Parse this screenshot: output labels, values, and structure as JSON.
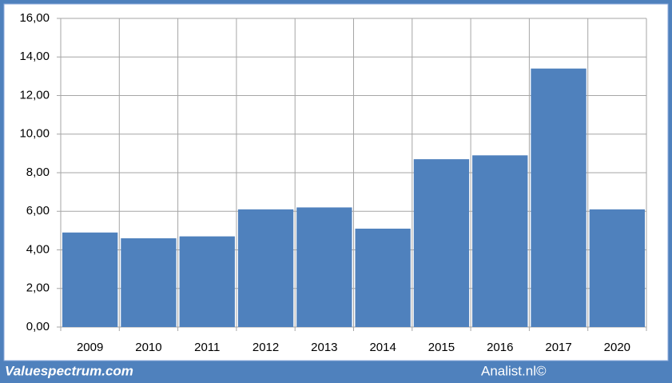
{
  "chart_data": {
    "type": "bar",
    "categories": [
      "2009",
      "2010",
      "2011",
      "2012",
      "2013",
      "2014",
      "2015",
      "2016",
      "2017",
      "2020"
    ],
    "values": [
      4.9,
      4.6,
      4.7,
      6.1,
      6.2,
      5.1,
      8.7,
      8.9,
      13.4,
      6.1
    ],
    "color": "#4f81bd",
    "ylim": [
      0,
      16
    ],
    "yticks": [
      {
        "value": 0,
        "label": "0,00"
      },
      {
        "value": 2,
        "label": "2,00"
      },
      {
        "value": 4,
        "label": "4,00"
      },
      {
        "value": 6,
        "label": "6,00"
      },
      {
        "value": 8,
        "label": "8,00"
      },
      {
        "value": 10,
        "label": "10,00"
      },
      {
        "value": 12,
        "label": "12,00"
      },
      {
        "value": 14,
        "label": "14,00"
      },
      {
        "value": 16,
        "label": "16,00"
      }
    ],
    "grid": true
  },
  "footer": {
    "left": "Valuespectrum.com",
    "right": "Analist.nl©"
  }
}
